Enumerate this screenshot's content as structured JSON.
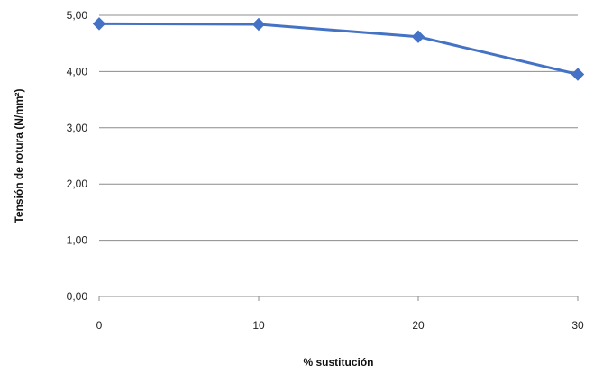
{
  "chart_data": {
    "type": "line",
    "title": "",
    "xlabel": "% sustitución",
    "ylabel": "Tensión de rotura (N/mm²)",
    "x": [
      0,
      10,
      20,
      30
    ],
    "x_tick_labels": [
      "0",
      "10",
      "20",
      "30"
    ],
    "ylim": [
      0,
      5
    ],
    "y_ticks": [
      0,
      1,
      2,
      3,
      4,
      5
    ],
    "y_tick_labels": [
      "0,00",
      "1,00",
      "2,00",
      "3,00",
      "4,00",
      "5,00"
    ],
    "grid": "horizontal",
    "legend": "none",
    "series": [
      {
        "values": [
          4.85,
          4.84,
          4.62,
          3.95
        ],
        "color": "#4472C4",
        "marker": "diamond"
      }
    ]
  }
}
